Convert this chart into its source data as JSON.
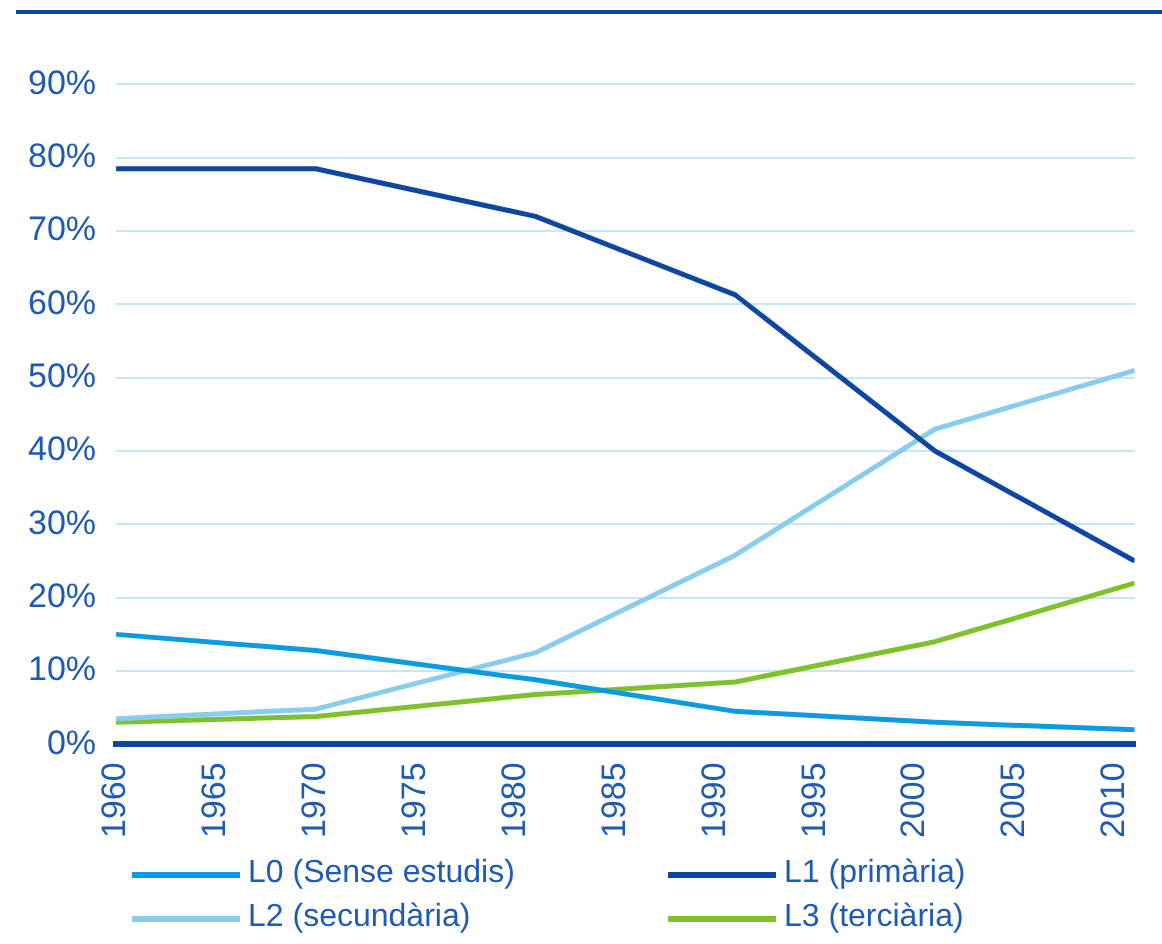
{
  "chart_data": {
    "type": "line",
    "x": [
      1960,
      1970,
      1981,
      1991,
      2001,
      2011
    ],
    "series": [
      {
        "name": "L0 (Sense estudis)",
        "color": "#0a9be0",
        "values": [
          15,
          12.8,
          8.8,
          4.5,
          3,
          2
        ]
      },
      {
        "name": "L1 (primària)",
        "color": "#0d47a1",
        "values": [
          78.5,
          78.5,
          72,
          61.3,
          40,
          25
        ]
      },
      {
        "name": "L2 (secundària)",
        "color": "#88cdf0",
        "values": [
          3.5,
          4.8,
          12.5,
          25.8,
          43,
          51
        ]
      },
      {
        "name": "L3 (terciària)",
        "color": "#7dc12b",
        "values": [
          3,
          3.8,
          6.8,
          8.5,
          14,
          22
        ]
      }
    ],
    "xlim": [
      1960,
      2011
    ],
    "xticks": [
      1960,
      1965,
      1970,
      1975,
      1980,
      1985,
      1990,
      1995,
      2000,
      2005,
      2010
    ],
    "ylim": [
      0,
      90
    ],
    "yticks": [
      {
        "value": 0,
        "label": "0%"
      },
      {
        "value": 10,
        "label": "10%"
      },
      {
        "value": 20,
        "label": "20%"
      },
      {
        "value": 30,
        "label": "30%"
      },
      {
        "value": 40,
        "label": "40%"
      },
      {
        "value": 50,
        "label": "50%"
      },
      {
        "value": 60,
        "label": "60%"
      },
      {
        "value": 70,
        "label": "70%"
      },
      {
        "value": 80,
        "label": "80%"
      },
      {
        "value": 90,
        "label": "90%"
      }
    ],
    "grid": "y",
    "legend": "bottom",
    "marker": "none",
    "line_style": "solid"
  }
}
